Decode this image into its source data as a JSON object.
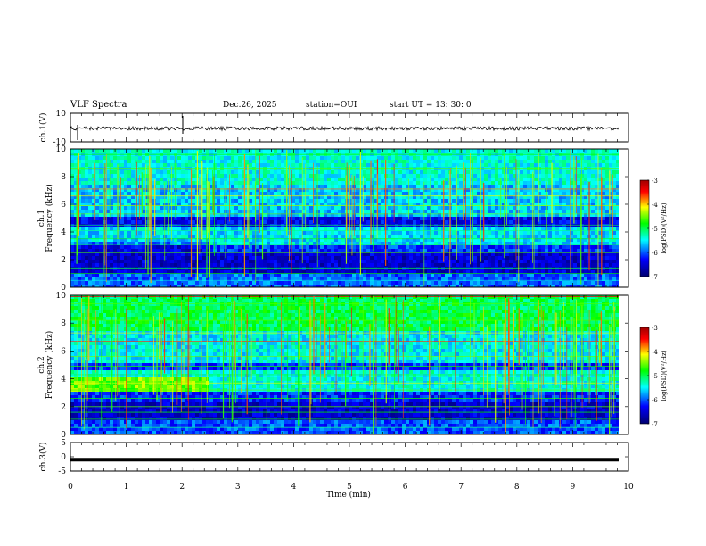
{
  "header": {
    "title": "VLF Spectra",
    "date": "Dec.26, 2025",
    "station": "station=OUI",
    "start": "start  UT  =   13: 30: 0"
  },
  "chart_data": [
    {
      "type": "line",
      "name": "ch1-waveform",
      "ylabel": "ch.1(V)",
      "ylim": [
        -10,
        10
      ],
      "yticks": [
        "10",
        "-10"
      ],
      "xlim": [
        0,
        10
      ]
    },
    {
      "type": "heatmap",
      "name": "ch1-spectrogram",
      "ylabel": "ch.1\nFrequency (kHz)",
      "ylim": [
        0,
        10
      ],
      "yticks": [
        "0",
        "2",
        "4",
        "6",
        "8",
        "10"
      ],
      "xlim": [
        0,
        10
      ],
      "colorbar": {
        "label": "log(PSD)(V²/Hz)",
        "range": [
          -7,
          -3
        ],
        "ticks": [
          "-3",
          "-4",
          "-5",
          "-6",
          "-7"
        ]
      }
    },
    {
      "type": "heatmap",
      "name": "ch2-spectrogram",
      "ylabel": "ch.2\nFrequency (kHz)",
      "ylim": [
        0,
        10
      ],
      "yticks": [
        "0",
        "2",
        "4",
        "6",
        "8",
        "10"
      ],
      "xlim": [
        0,
        10
      ],
      "colorbar": {
        "label": "log(PSD)(V²/Hz)",
        "range": [
          -7,
          -3
        ],
        "ticks": [
          "-3",
          "-4",
          "-5",
          "-6",
          "-7"
        ]
      }
    },
    {
      "type": "line",
      "name": "ch3-waveform",
      "ylabel": "ch.3(V)",
      "ylim": [
        -5,
        5
      ],
      "yticks": [
        "5",
        "0",
        "-5"
      ],
      "xlim": [
        0,
        10
      ],
      "values": {
        "level": -1
      }
    }
  ],
  "xaxis": {
    "label": "Time (min)",
    "ticks": [
      "0",
      "1",
      "2",
      "3",
      "4",
      "5",
      "6",
      "7",
      "8",
      "9",
      "10"
    ]
  },
  "colors": {
    "background": "#ffffff",
    "frame": "#000000",
    "colormap": [
      "#00006e",
      "#0000ff",
      "#00ffff",
      "#00ff00",
      "#ffff00",
      "#ff0000",
      "#a00000"
    ]
  }
}
